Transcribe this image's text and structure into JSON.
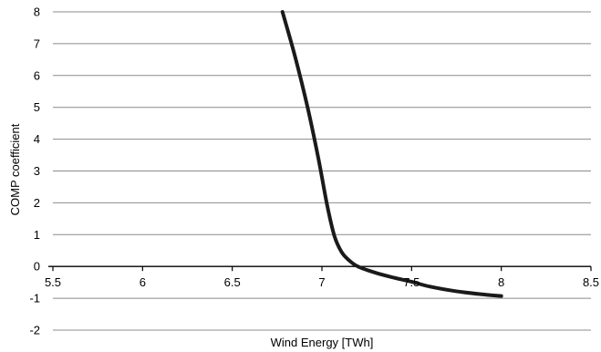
{
  "chart_data": {
    "type": "line",
    "xlabel": "Wind Energy [TWh]",
    "ylabel": "COMP coefficient",
    "xlim": [
      5.5,
      8.5
    ],
    "ylim": [
      -2,
      8
    ],
    "x_ticks": [
      "5.5",
      "6",
      "6.5",
      "7",
      "7.5",
      "8",
      "8.5"
    ],
    "y_ticks": [
      "8",
      "7",
      "6",
      "5",
      "4",
      "3",
      "2",
      "1",
      "0",
      "-1",
      "-2"
    ],
    "grid": "horizontal",
    "legend": "none",
    "series": [
      {
        "color": "#1a1a1a",
        "points": [
          [
            6.78,
            8.0
          ],
          [
            6.85,
            6.6
          ],
          [
            6.92,
            5.0
          ],
          [
            6.98,
            3.4
          ],
          [
            7.03,
            1.9
          ],
          [
            7.07,
            0.95
          ],
          [
            7.11,
            0.45
          ],
          [
            7.15,
            0.2
          ],
          [
            7.2,
            0.0
          ],
          [
            7.3,
            -0.2
          ],
          [
            7.4,
            -0.35
          ],
          [
            7.5,
            -0.48
          ],
          [
            7.6,
            -0.63
          ],
          [
            7.75,
            -0.78
          ],
          [
            7.9,
            -0.88
          ],
          [
            8.0,
            -0.93
          ]
        ]
      }
    ]
  }
}
